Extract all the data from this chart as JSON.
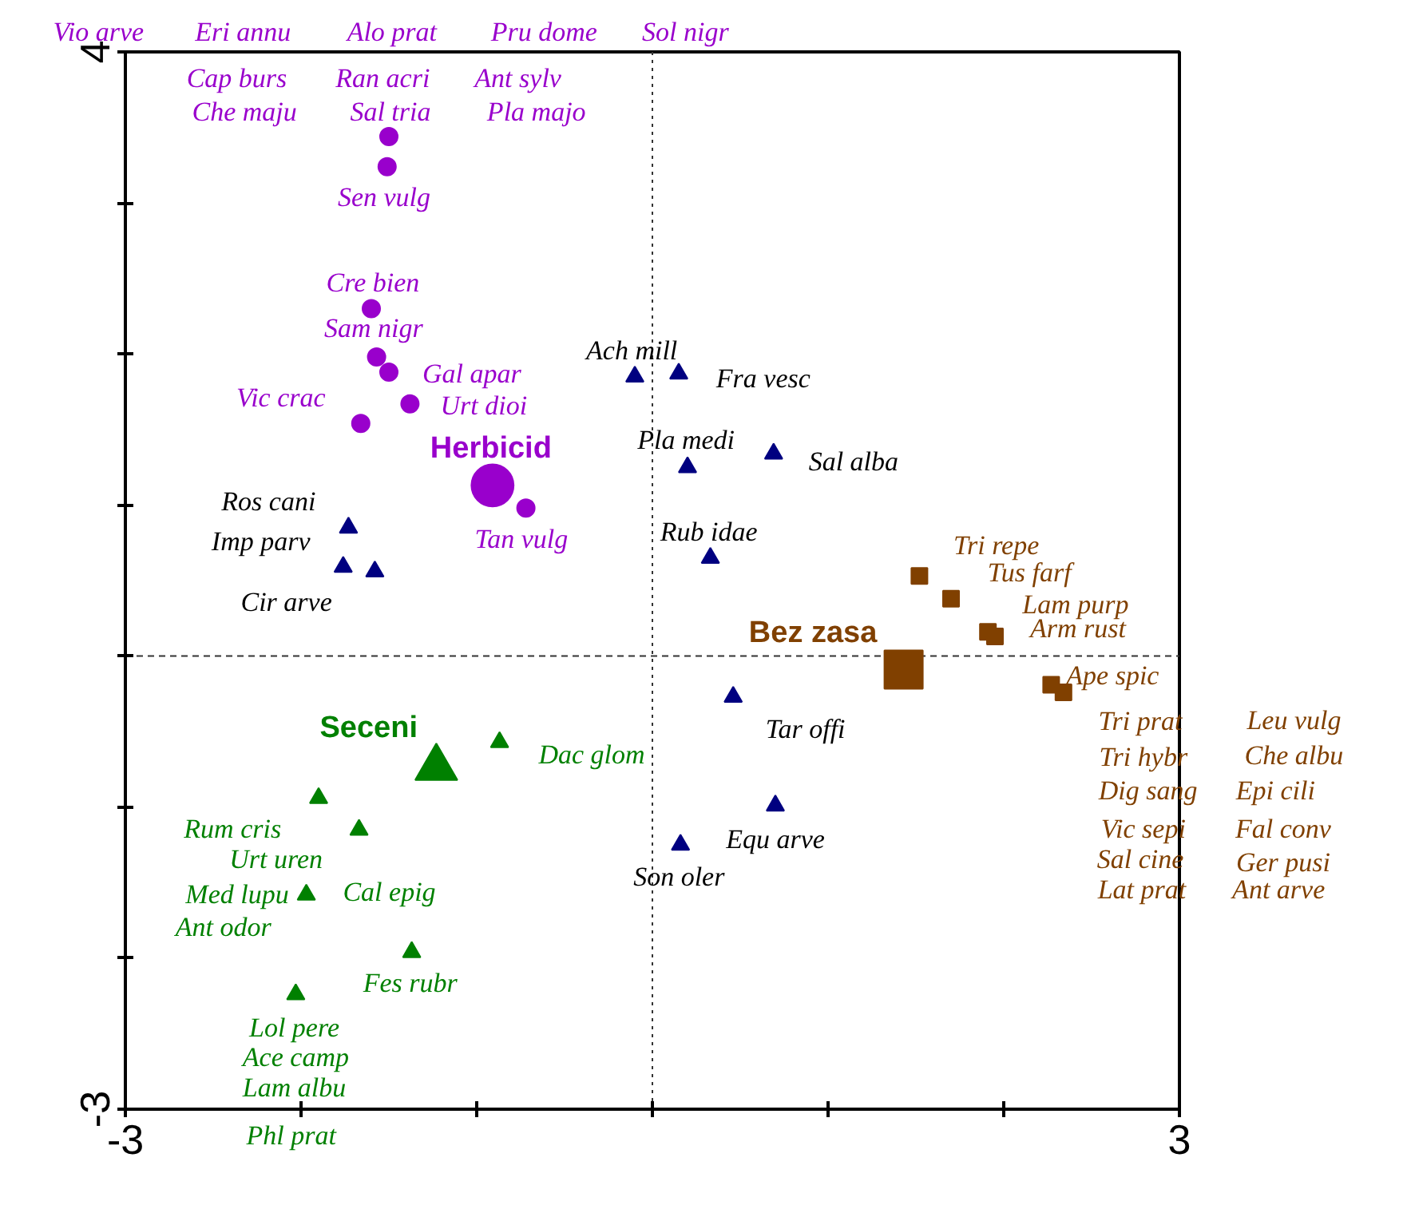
{
  "chart_data": {
    "type": "scatter",
    "xlim": [
      -3,
      3
    ],
    "ylim": [
      -3,
      4
    ],
    "xticks": [
      -3,
      {
        "value": -2,
        "label": null
      },
      {
        "value": -1,
        "label": null
      },
      {
        "value": 0,
        "label": null
      },
      {
        "value": 1,
        "label": null
      },
      {
        "value": 2,
        "label": null
      },
      3
    ],
    "yticks": [
      -3,
      {
        "value": -2,
        "label": null
      },
      {
        "value": -1,
        "label": null
      },
      {
        "value": 0,
        "label": null
      },
      {
        "value": 1,
        "label": null
      },
      {
        "value": 2,
        "label": null
      },
      {
        "value": 3,
        "label": null
      },
      4
    ],
    "grid": false,
    "series": [
      {
        "color": "#9900cc",
        "marker": "circle",
        "x": [
          -1.5,
          -1.51,
          -1.6,
          -1.57,
          -1.5,
          -1.38,
          -1.66,
          -0.72
        ],
        "values": [
          3.44,
          3.24,
          2.3,
          1.98,
          1.88,
          1.67,
          1.54,
          0.98
        ]
      },
      {
        "name": "Herbicid",
        "color": "#9900cc",
        "marker": "circle",
        "x": [
          -0.91
        ],
        "values": [
          1.13
        ]
      },
      {
        "color": "#000080",
        "marker": "triangle",
        "x": [
          -0.1,
          0.15,
          0.2,
          0.69,
          0.33,
          -1.73,
          -1.76,
          -1.58,
          0.46,
          0.7,
          0.16
        ],
        "values": [
          1.85,
          1.87,
          1.25,
          1.34,
          0.65,
          0.85,
          0.59,
          0.56,
          -0.27,
          -0.99,
          -1.25
        ]
      },
      {
        "color": "#804000",
        "marker": "square",
        "x": [
          1.52,
          1.7,
          1.91,
          1.95,
          2.27,
          2.34
        ],
        "values": [
          0.53,
          0.38,
          0.16,
          0.13,
          -0.19,
          -0.24
        ]
      },
      {
        "name": "Bez zasa",
        "color": "#804000",
        "marker": "square",
        "x": [
          1.43
        ],
        "values": [
          -0.09
        ]
      },
      {
        "color": "#008000",
        "marker": "triangle",
        "x": [
          -0.87,
          -1.9,
          -1.67,
          -1.97,
          -1.37,
          -2.03
        ],
        "values": [
          -0.57,
          -0.94,
          -1.15,
          -1.58,
          -1.96,
          -2.24
        ]
      },
      {
        "name": "Seceni",
        "color": "#008000",
        "marker": "triangle",
        "x": [
          -1.23
        ],
        "values": [
          -0.74
        ]
      }
    ],
    "ref_lines": [
      {
        "axis": "x",
        "value": 0,
        "line_style": "dotted",
        "color": "#333333"
      },
      {
        "axis": "y",
        "value": 0,
        "line_style": "dashed",
        "color": "#333333"
      }
    ],
    "annotations": [
      "Vio arve",
      "Eri annu",
      "Alo prat",
      "Pru dome",
      "Sol nigr",
      "Cap burs",
      {
        "text": "Ran acri",
        "x": -1.5,
        "y": 3.44
      },
      "Ant sylv",
      "Che maju",
      {
        "text": "Sal tria",
        "x": -1.5,
        "y": 3.44
      },
      "Pla majo",
      {
        "text": "Sen vulg",
        "x": -1.51,
        "y": 3.24
      },
      {
        "text": "Cre bien",
        "x": -1.6,
        "y": 2.3
      },
      {
        "text": "Sam nigr",
        "x": -1.57,
        "y": 1.98
      },
      {
        "text": "Gal apar",
        "x": -1.5,
        "y": 1.88
      },
      {
        "text": "Urt dioi",
        "x": -1.38,
        "y": 1.67
      },
      {
        "text": "Vic crac",
        "x": -1.66,
        "y": 1.54
      },
      {
        "text": "Tan vulg",
        "x": -0.72,
        "y": 0.98
      },
      {
        "text": "Ach mill",
        "x": -0.1,
        "y": 1.85
      },
      {
        "text": "Fra vesc",
        "x": 0.15,
        "y": 1.87
      },
      {
        "text": "Pla medi",
        "x": 0.2,
        "y": 1.25
      },
      {
        "text": "Sal alba",
        "x": 0.69,
        "y": 1.34
      },
      {
        "text": "Rub idae",
        "x": 0.33,
        "y": 0.65
      },
      {
        "text": "Ros cani",
        "x": -1.73,
        "y": 0.85
      },
      {
        "text": "Imp parv",
        "x": -1.73,
        "y": 0.85
      },
      {
        "text": "Cir arve",
        "x": -1.76,
        "y": 0.59
      },
      {
        "text": "Tar offi",
        "x": 0.46,
        "y": -0.27
      },
      {
        "text": "Equ arve",
        "x": 0.7,
        "y": -0.99
      },
      {
        "text": "Son oler",
        "x": 0.16,
        "y": -1.25
      },
      {
        "text": "Tri repe",
        "x": 1.52,
        "y": 0.53
      },
      {
        "text": "Tus farf",
        "x": 1.7,
        "y": 0.38
      },
      {
        "text": "Lam purp",
        "x": 1.91,
        "y": 0.16
      },
      {
        "text": "Arm rust",
        "x": 1.95,
        "y": 0.13
      },
      {
        "text": "Ape spic",
        "x": 2.27,
        "y": -0.19
      },
      {
        "text": "Tri prat",
        "x": 2.34,
        "y": -0.24
      },
      {
        "text": "Tri hybr",
        "x": 2.34,
        "y": -0.24
      },
      "Dig sang",
      "Vic sepi",
      "Sal cine",
      "Lat prat",
      "Leu vulg",
      "Che albu",
      "Epi cili",
      "Fal conv",
      "Ger pusi",
      "Ant arve",
      {
        "text": "Dac glom",
        "x": -0.87,
        "y": -0.57
      },
      {
        "text": "Rum cris",
        "x": -1.9,
        "y": -0.94
      },
      {
        "text": "Urt uren",
        "x": -1.67,
        "y": -1.15
      },
      {
        "text": "Med lupu",
        "x": -1.97,
        "y": -1.58
      },
      {
        "text": "Cal epig",
        "x": -1.97,
        "y": -1.58
      },
      {
        "text": "Ant odor",
        "x": -1.97,
        "y": -1.58
      },
      {
        "text": "Fes rubr",
        "x": -1.37,
        "y": -1.96
      },
      {
        "text": "Lol pere",
        "x": -2.03,
        "y": -2.24
      },
      {
        "text": "Ace camp",
        "x": -2.03,
        "y": -2.24
      },
      "Lam albu",
      "Phl prat"
    ]
  }
}
